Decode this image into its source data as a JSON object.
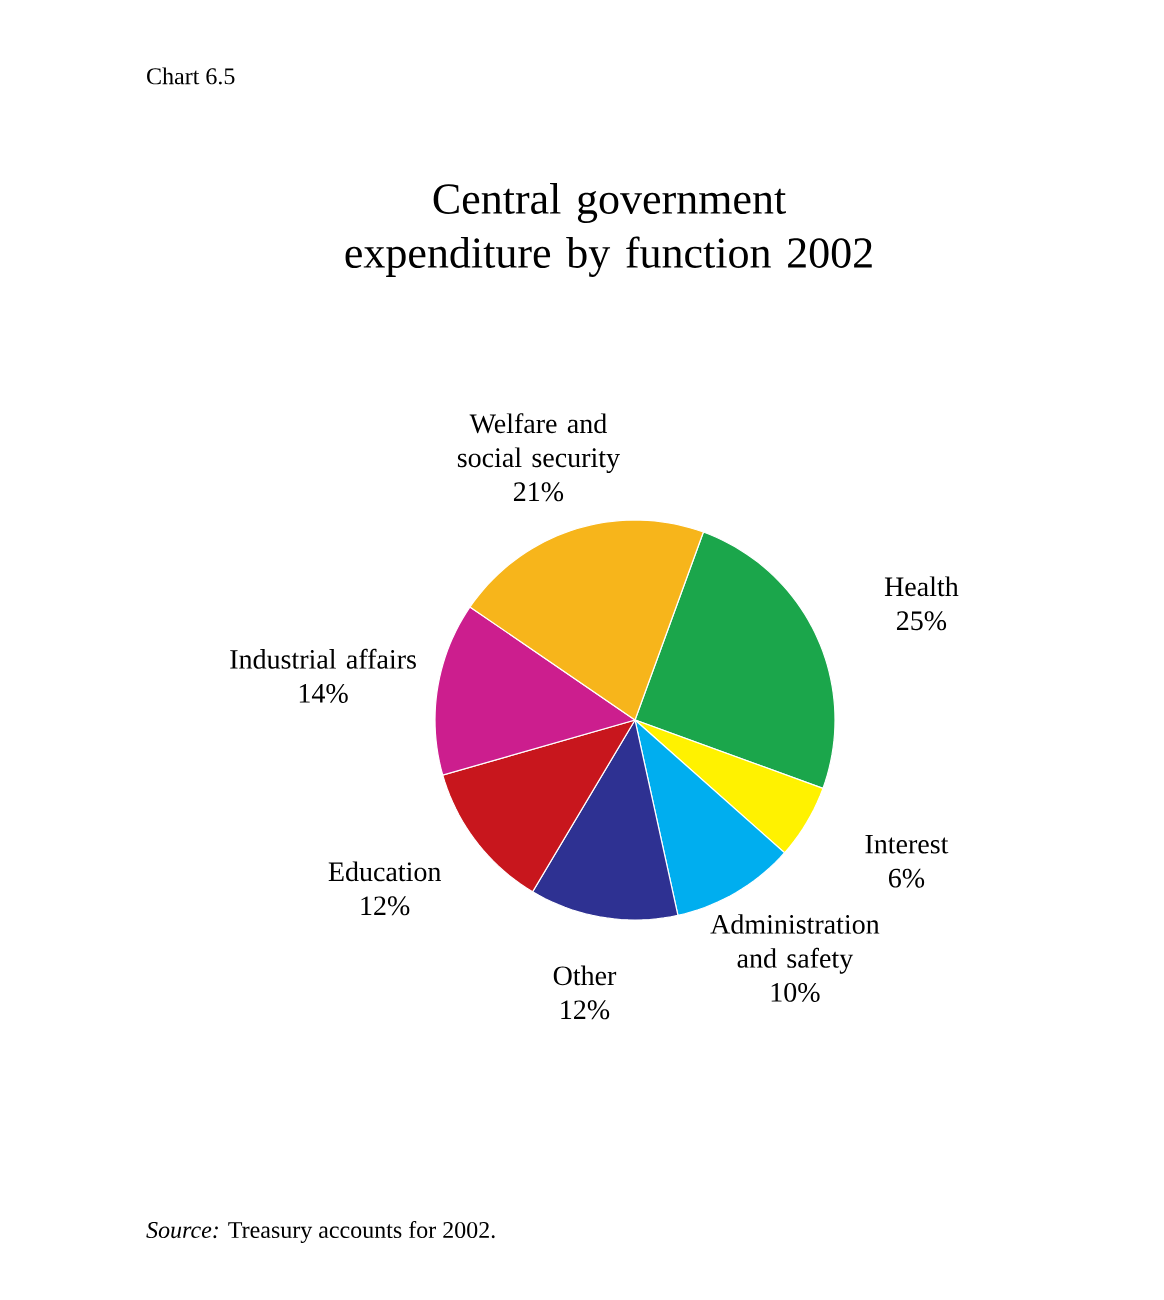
{
  "chart_data": {
    "type": "pie",
    "title": "Central government expenditure by function 2002",
    "categories": [
      "Health",
      "Interest",
      "Administration and safety",
      "Other",
      "Education",
      "Industrial affairs",
      "Welfare and social security"
    ],
    "values": [
      25,
      6,
      10,
      12,
      12,
      14,
      21
    ],
    "value_labels": [
      "25%",
      "6%",
      "10%",
      "12%",
      "12%",
      "14%",
      "21%"
    ],
    "colors": [
      "#1ba64b",
      "#fff200",
      "#00aeef",
      "#2e3192",
      "#c8161d",
      "#cc1e8e",
      "#f7b51b"
    ],
    "annotations": [
      "Chart 6.5",
      "*Source:* Treasury accounts for 2002."
    ]
  }
}
